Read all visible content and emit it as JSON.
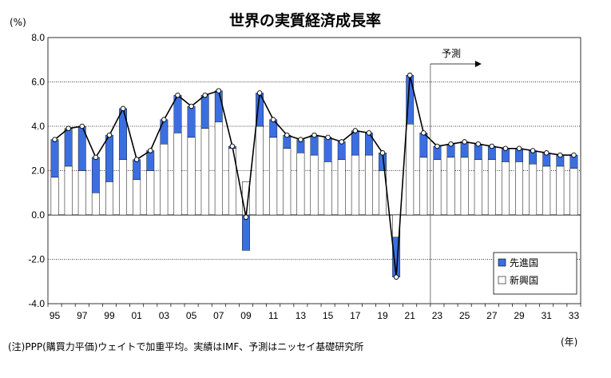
{
  "chart_data": {
    "type": "bar",
    "title": "世界の実質経済成長率",
    "ylabel": "(%)",
    "xlabel": "(年)",
    "ylim": [
      -4.0,
      8.0
    ],
    "yticks": [
      "8.0",
      "6.0",
      "4.0",
      "2.0",
      "0.0",
      "-2.0",
      "-4.0"
    ],
    "ytick_values": [
      8,
      6,
      4,
      2,
      0,
      -2,
      -4
    ],
    "x_tick_labels": [
      "95",
      "97",
      "99",
      "01",
      "03",
      "05",
      "07",
      "09",
      "11",
      "13",
      "15",
      "17",
      "19",
      "21",
      "23",
      "25",
      "27",
      "29",
      "31",
      "33"
    ],
    "categories": [
      1995,
      1996,
      1997,
      1998,
      1999,
      2000,
      2001,
      2002,
      2003,
      2004,
      2005,
      2006,
      2007,
      2008,
      2009,
      2010,
      2011,
      2012,
      2013,
      2014,
      2015,
      2016,
      2017,
      2018,
      2019,
      2020,
      2021,
      2022,
      2023,
      2024,
      2025,
      2026,
      2027,
      2028,
      2029,
      2030,
      2031,
      2032,
      2033
    ],
    "series": [
      {
        "name": "新興国",
        "color": "#ffffff",
        "values": [
          1.7,
          2.2,
          2.0,
          1.0,
          1.5,
          2.5,
          1.6,
          2.0,
          3.2,
          3.7,
          3.5,
          3.9,
          4.2,
          3.0,
          1.5,
          4.0,
          3.5,
          3.0,
          2.8,
          2.7,
          2.4,
          2.5,
          2.7,
          2.7,
          2.0,
          -1.0,
          4.1,
          2.6,
          2.5,
          2.6,
          2.6,
          2.5,
          2.5,
          2.4,
          2.4,
          2.3,
          2.2,
          2.2,
          2.1
        ]
      },
      {
        "name": "先進国",
        "color": "#3b6fe0",
        "values": [
          1.7,
          1.7,
          2.0,
          1.6,
          2.1,
          2.3,
          0.9,
          0.9,
          1.1,
          1.7,
          1.4,
          1.5,
          1.4,
          0.1,
          -1.6,
          1.5,
          0.8,
          0.6,
          0.6,
          0.9,
          1.1,
          0.8,
          1.1,
          1.0,
          0.8,
          -1.8,
          2.2,
          1.1,
          0.6,
          0.6,
          0.7,
          0.7,
          0.6,
          0.6,
          0.6,
          0.6,
          0.6,
          0.5,
          0.6
        ]
      }
    ],
    "total": [
      3.4,
      3.9,
      4.0,
      2.6,
      3.6,
      4.8,
      2.5,
      2.9,
      4.3,
      5.4,
      4.9,
      5.4,
      5.6,
      3.1,
      -0.1,
      5.5,
      4.3,
      3.6,
      3.4,
      3.6,
      3.5,
      3.3,
      3.8,
      3.7,
      2.8,
      -2.8,
      6.3,
      3.7,
      3.1,
      3.2,
      3.3,
      3.2,
      3.1,
      3.0,
      3.0,
      2.9,
      2.8,
      2.7,
      2.7
    ],
    "forecast_label": "予測",
    "forecast_start": 2022.5,
    "legend": [
      "先進国",
      "新興国"
    ],
    "legend_position": "bottom-right",
    "grid": "horizontal dotted",
    "note": "(注)PPP(購買力平価)ウェイトで加重平均。実績はIMF、予測はニッセイ基礎研究所",
    "colors": {
      "advanced": "#3b6fe0",
      "emerging": "#ffffff",
      "line": "#000000",
      "marker_fill": "#ffffff"
    }
  }
}
